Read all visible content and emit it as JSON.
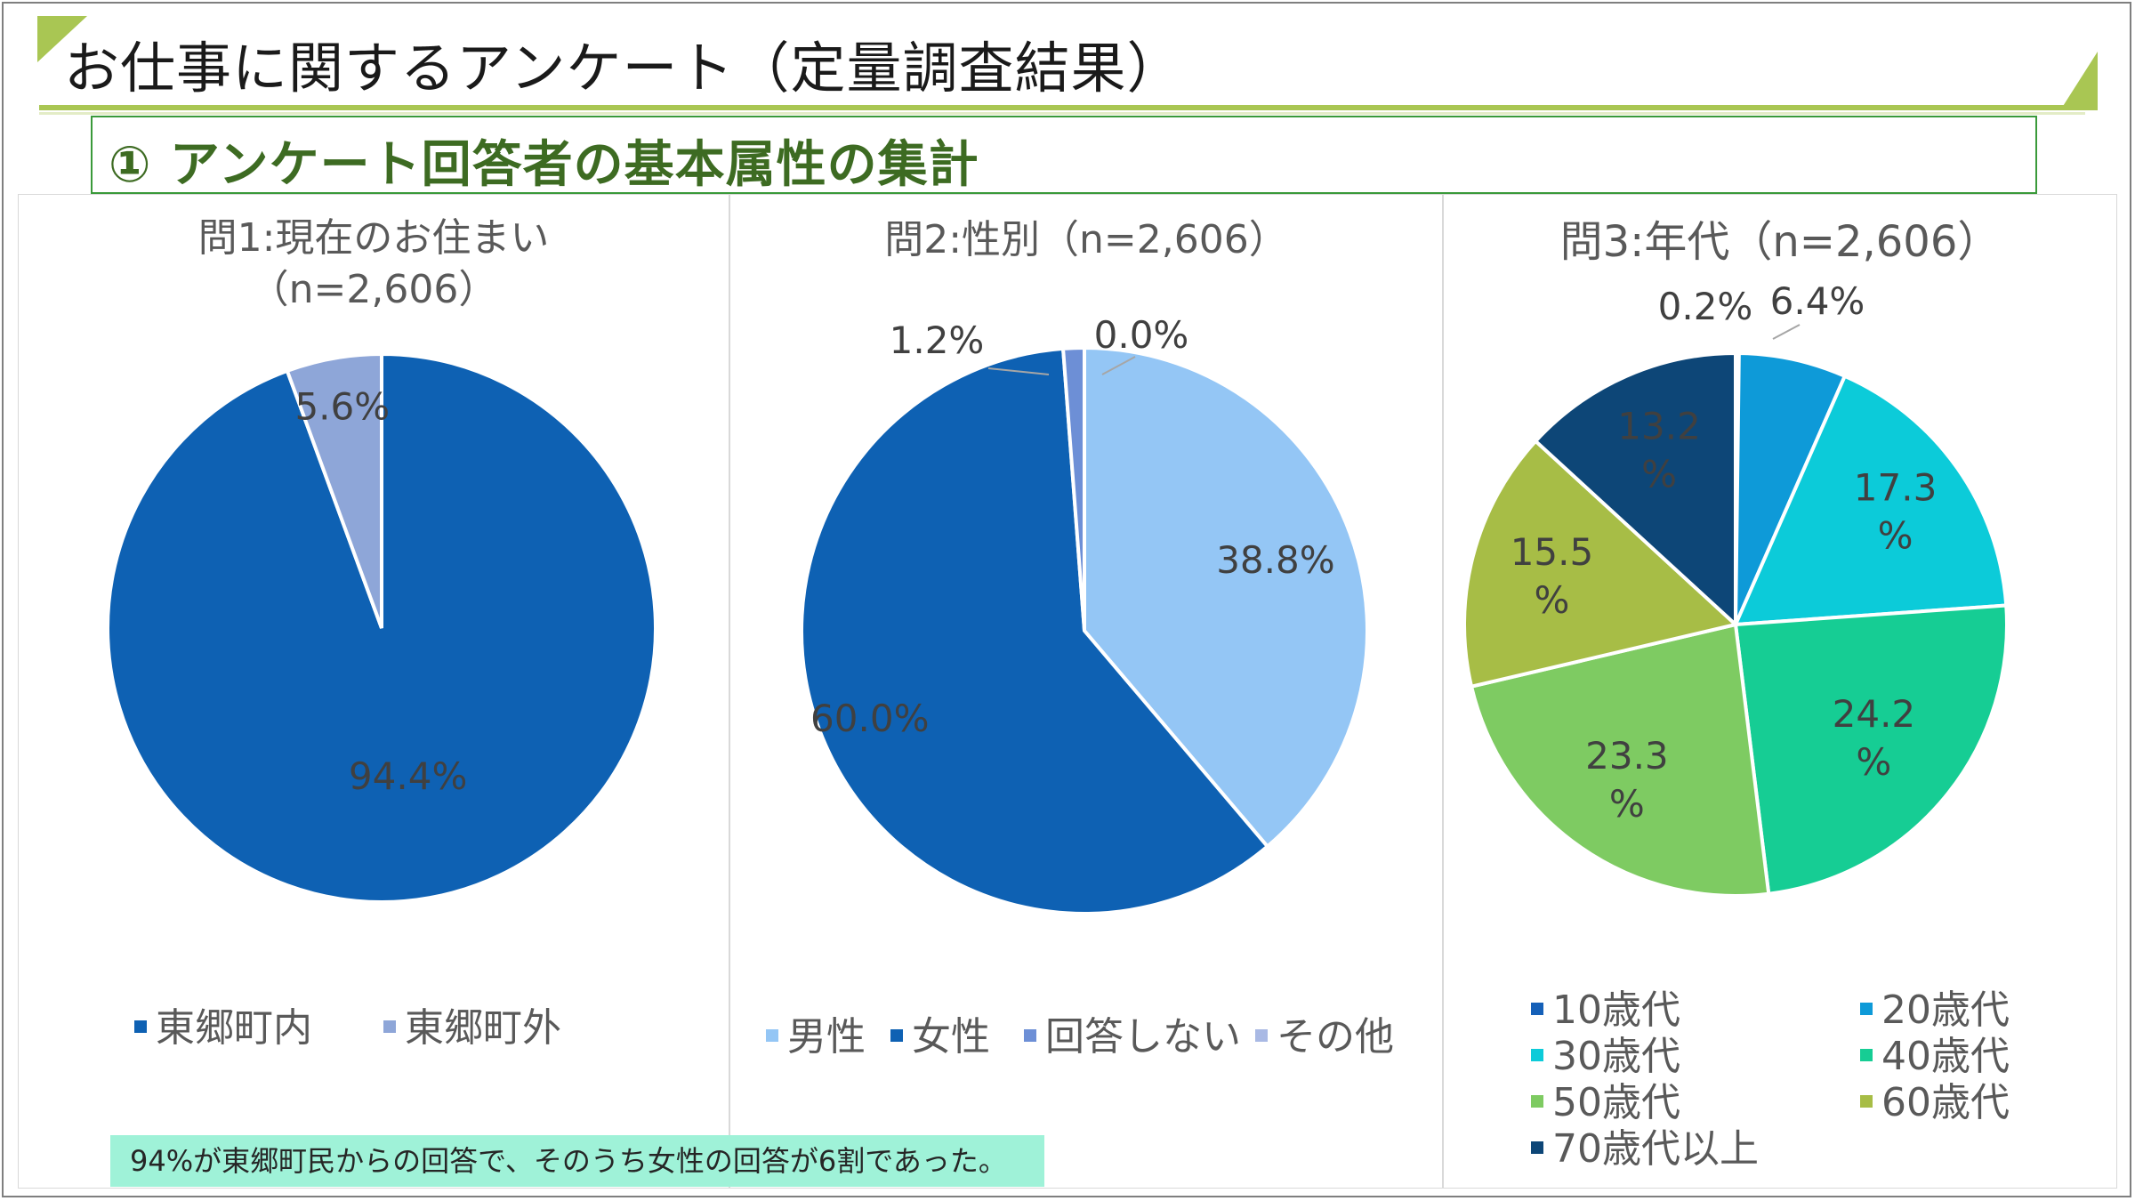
{
  "header": {
    "title": "お仕事に関するアンケート（定量調査結果）",
    "subtitle": "① アンケート回答者の基本属性の集計"
  },
  "note": "94%が東郷町民からの回答で、そのうち女性の回答が6割であった。",
  "colors": {
    "title_accent": "#a9c653",
    "subtitle_text": "#3d6b22",
    "subtitle_border": "#3a9a3a",
    "note_bg": "#9ff2d8"
  },
  "chart_data": [
    {
      "type": "pie",
      "title_line1": "問1:現在のお住まい",
      "title_line2": "（n=2,606）",
      "categories": [
        "東郷町内",
        "東郷町外"
      ],
      "values": [
        94.4,
        5.6
      ],
      "labels": [
        "94.4%",
        "5.6%"
      ],
      "colors": [
        "#0e61b3",
        "#8ea6d8"
      ],
      "legend_position": "bottom"
    },
    {
      "type": "pie",
      "title": "問2:性別（n=2,606）",
      "categories": [
        "男性",
        "女性",
        "回答しない",
        "その他"
      ],
      "values": [
        38.8,
        60.0,
        1.2,
        0.0
      ],
      "labels": [
        "38.8%",
        "60.0%",
        "1.2%",
        "0.0%"
      ],
      "colors": [
        "#94c6f5",
        "#0e61b3",
        "#6d8fd6",
        "#a9b9e4"
      ],
      "legend_position": "bottom"
    },
    {
      "type": "pie",
      "title": "問3:年代（n=2,606）",
      "categories": [
        "10歳代",
        "20歳代",
        "30歳代",
        "40歳代",
        "50歳代",
        "60歳代",
        "70歳代以上"
      ],
      "values": [
        0.2,
        6.4,
        17.3,
        24.2,
        23.3,
        15.5,
        13.2
      ],
      "labels": [
        "0.2%",
        "6.4%",
        "17.3\n%",
        "24.2\n%",
        "23.3\n%",
        "15.5\n%",
        "13.2\n%"
      ],
      "colors": [
        "#1560b8",
        "#0e9ad8",
        "#0ccbd9",
        "#16cd94",
        "#7ecb62",
        "#a7bd46",
        "#0d4677"
      ],
      "legend_position": "bottom"
    }
  ]
}
